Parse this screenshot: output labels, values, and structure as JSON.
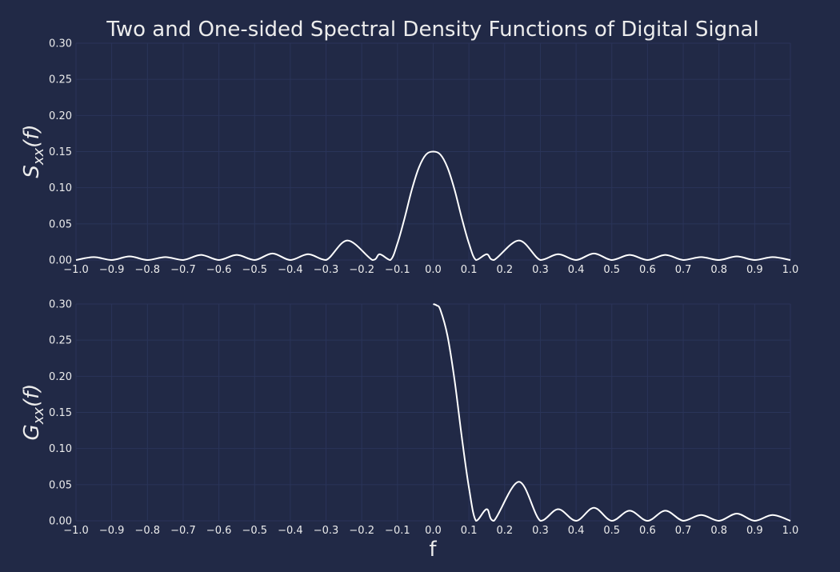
{
  "title": "Two and One-sided Spectral Density Functions of Digital Signal",
  "xlabel": "f",
  "colors": {
    "background": "#212946",
    "grid": "#2A3459",
    "line": "#ffffff",
    "text": "#ececec"
  },
  "chart_data": [
    {
      "type": "line",
      "ylabel_main": "S",
      "ylabel_sub": "xx",
      "ylabel_arg": "(f)",
      "xlim": [
        -1.0,
        1.0
      ],
      "ylim": [
        0.0,
        0.3
      ],
      "xticks": [
        "−1.0",
        "−0.9",
        "−0.8",
        "−0.7",
        "−0.6",
        "−0.5",
        "−0.4",
        "−0.3",
        "−0.2",
        "−0.1",
        "0.0",
        "0.1",
        "0.2",
        "0.3",
        "0.4",
        "0.5",
        "0.6",
        "0.7",
        "0.8",
        "0.9",
        "1.0"
      ],
      "yticks": [
        "0.00",
        "0.05",
        "0.10",
        "0.15",
        "0.20",
        "0.25",
        "0.30"
      ],
      "grid": true,
      "series": [
        {
          "x": [
            -1.0,
            -0.95,
            -0.9,
            -0.85,
            -0.8,
            -0.75,
            -0.7,
            -0.65,
            -0.6,
            -0.55,
            -0.5,
            -0.45,
            -0.4,
            -0.35,
            -0.3,
            -0.24,
            -0.17,
            -0.15,
            -0.12,
            -0.1,
            -0.08,
            -0.06,
            -0.04,
            -0.02,
            0.0,
            0.02,
            0.04,
            0.06,
            0.08,
            0.1,
            0.12,
            0.15,
            0.17,
            0.24,
            0.3,
            0.35,
            0.4,
            0.45,
            0.5,
            0.55,
            0.6,
            0.65,
            0.7,
            0.75,
            0.8,
            0.85,
            0.9,
            0.95,
            1.0
          ],
          "y": [
            0.0,
            0.004,
            0.0,
            0.005,
            0.0,
            0.004,
            0.0,
            0.007,
            0.0,
            0.007,
            0.0,
            0.009,
            0.0,
            0.008,
            0.0,
            0.027,
            0.0,
            0.008,
            0.0,
            0.023,
            0.058,
            0.097,
            0.128,
            0.146,
            0.15,
            0.146,
            0.128,
            0.097,
            0.058,
            0.023,
            0.0,
            0.008,
            0.0,
            0.027,
            0.0,
            0.008,
            0.0,
            0.009,
            0.0,
            0.007,
            0.0,
            0.007,
            0.0,
            0.004,
            0.0,
            0.005,
            0.0,
            0.004,
            0.0
          ]
        }
      ]
    },
    {
      "type": "line",
      "ylabel_main": "G",
      "ylabel_sub": "xx",
      "ylabel_arg": "(f)",
      "xlim": [
        -1.0,
        1.0
      ],
      "ylim": [
        0.0,
        0.3
      ],
      "xticks": [
        "−1.0",
        "−0.9",
        "−0.8",
        "−0.7",
        "−0.6",
        "−0.5",
        "−0.4",
        "−0.3",
        "−0.2",
        "−0.1",
        "0.0",
        "0.1",
        "0.2",
        "0.3",
        "0.4",
        "0.5",
        "0.6",
        "0.7",
        "0.8",
        "0.9",
        "1.0"
      ],
      "yticks": [
        "0.00",
        "0.05",
        "0.10",
        "0.15",
        "0.20",
        "0.25",
        "0.30"
      ],
      "grid": true,
      "series": [
        {
          "x": [
            0.0,
            0.01,
            0.02,
            0.04,
            0.06,
            0.08,
            0.1,
            0.12,
            0.15,
            0.17,
            0.24,
            0.3,
            0.35,
            0.4,
            0.45,
            0.5,
            0.55,
            0.6,
            0.65,
            0.7,
            0.75,
            0.8,
            0.85,
            0.9,
            0.95,
            1.0
          ],
          "y": [
            0.3,
            0.298,
            0.292,
            0.256,
            0.194,
            0.116,
            0.046,
            0.0,
            0.016,
            0.0,
            0.054,
            0.0,
            0.016,
            0.0,
            0.018,
            0.0,
            0.014,
            0.0,
            0.014,
            0.0,
            0.008,
            0.0,
            0.01,
            0.0,
            0.008,
            0.0
          ]
        }
      ]
    }
  ]
}
